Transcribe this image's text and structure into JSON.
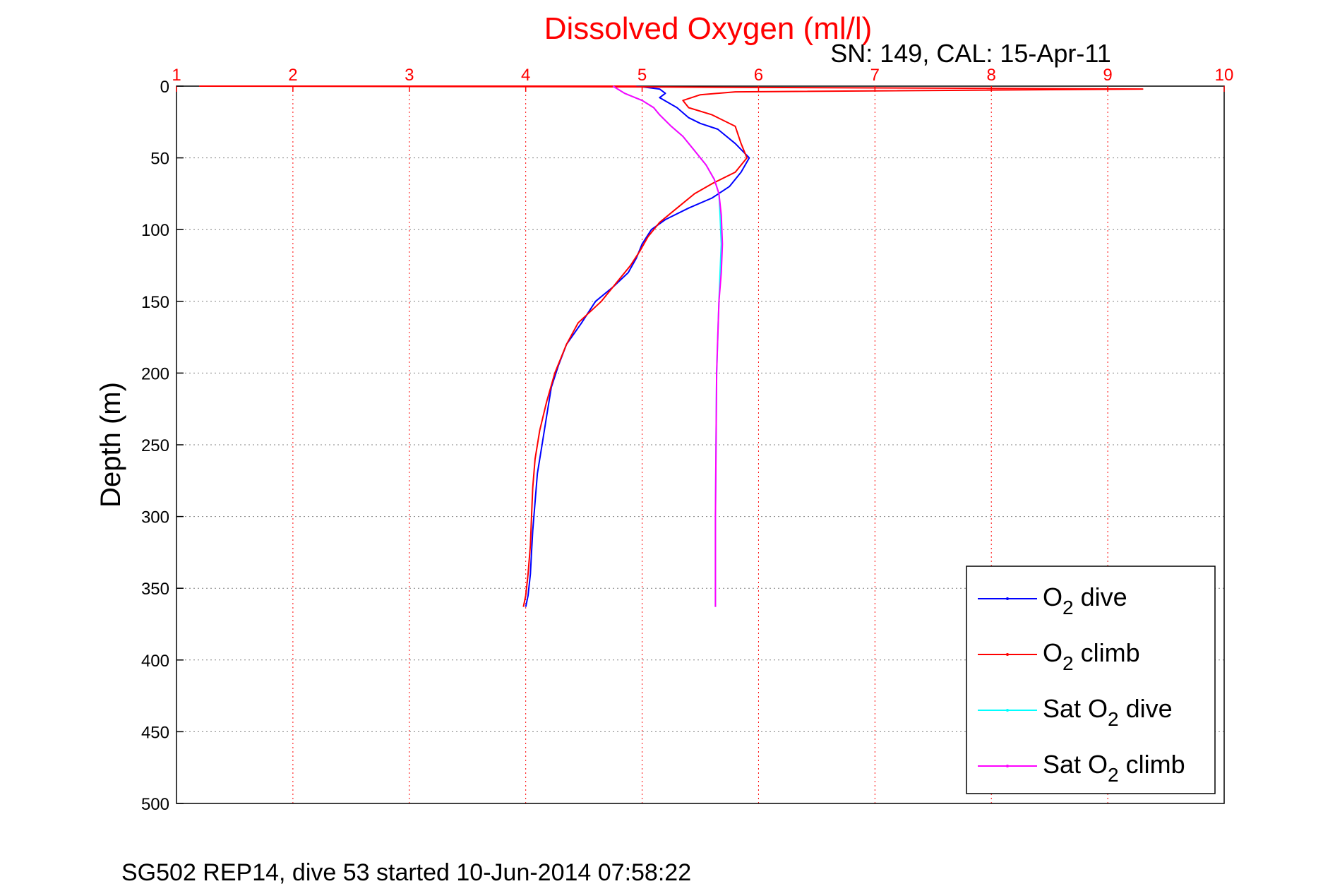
{
  "chart_data": {
    "type": "line",
    "title": "Dissolved Oxygen (ml/l)",
    "subtitle": "SN: 149, CAL: 15-Apr-11",
    "ylabel": "Depth (m)",
    "caption": "SG502 REP14, dive 53 started 10-Jun-2014 07:58:22",
    "xlim": [
      1,
      10
    ],
    "ylim": [
      0,
      500
    ],
    "y_reversed": true,
    "x_axis_position": "top",
    "x_ticks": [
      "1",
      "2",
      "3",
      "4",
      "5",
      "6",
      "7",
      "8",
      "9",
      "10"
    ],
    "y_ticks": [
      "0",
      "50",
      "100",
      "150",
      "200",
      "250",
      "300",
      "350",
      "400",
      "450",
      "500"
    ],
    "grid": true,
    "legend_position": "bottom-right",
    "colors": {
      "axis_x": "#ff0000",
      "title": "#ff0000",
      "grid": "#808080",
      "grid_x": "#ff0000"
    },
    "series": [
      {
        "name": "O₂ dive",
        "legend_main": "O",
        "legend_sub": "2",
        "legend_tail": " dive",
        "color": "#0000ff",
        "x": [
          4.8,
          5.0,
          5.15,
          5.2,
          5.15,
          5.3,
          5.4,
          5.5,
          5.65,
          5.8,
          5.92,
          5.85,
          5.75,
          5.6,
          5.4,
          5.2,
          5.08,
          5.0,
          4.95,
          4.88,
          4.75,
          4.6,
          4.48,
          4.35,
          4.28,
          4.22,
          4.18,
          4.14,
          4.1,
          4.08,
          4.06,
          4.05,
          4.04,
          4.02,
          4.0
        ],
        "y": [
          0,
          0.5,
          2,
          5,
          8,
          15,
          22,
          26,
          30,
          40,
          50,
          60,
          70,
          78,
          85,
          93,
          100,
          110,
          120,
          130,
          140,
          150,
          165,
          180,
          195,
          210,
          230,
          250,
          270,
          290,
          310,
          325,
          340,
          355,
          363
        ]
      },
      {
        "name": "O₂ climb",
        "legend_main": "O",
        "legend_sub": "2",
        "legend_tail": " climb",
        "color": "#ff0000",
        "x": [
          4.95,
          1.2,
          4.8,
          9.3,
          5.8,
          5.5,
          5.35,
          5.4,
          5.6,
          5.8,
          5.85,
          5.9,
          5.8,
          5.6,
          5.45,
          5.3,
          5.15,
          5.05,
          4.98,
          4.9,
          4.8,
          4.65,
          4.45,
          4.35,
          4.25,
          4.18,
          4.12,
          4.08,
          4.06,
          4.05,
          4.04,
          4.02,
          4.0,
          3.98
        ],
        "y": [
          0,
          0,
          0.5,
          2,
          4,
          6,
          10,
          15,
          20,
          28,
          40,
          50,
          60,
          68,
          75,
          85,
          95,
          105,
          115,
          125,
          135,
          150,
          165,
          180,
          200,
          220,
          240,
          260,
          280,
          300,
          320,
          340,
          355,
          363
        ]
      },
      {
        "name": "Sat O₂ dive",
        "legend_main": "Sat O",
        "legend_sub": "2",
        "legend_tail": " dive",
        "color": "#00ffff",
        "x": [
          4.75,
          4.85,
          5.0,
          5.1,
          5.15,
          5.25,
          5.35,
          5.45,
          5.55,
          5.62,
          5.66,
          5.67,
          5.68,
          5.67,
          5.66,
          5.65,
          5.64,
          5.63,
          5.63
        ],
        "y": [
          0,
          5,
          10,
          15,
          20,
          28,
          35,
          45,
          55,
          65,
          75,
          90,
          110,
          130,
          150,
          175,
          200,
          300,
          363
        ]
      },
      {
        "name": "Sat O₂ climb",
        "legend_main": "Sat O",
        "legend_sub": "2",
        "legend_tail": " climb",
        "color": "#ff00ff",
        "x": [
          4.75,
          4.85,
          5.0,
          5.1,
          5.15,
          5.25,
          5.35,
          5.45,
          5.55,
          5.62,
          5.66,
          5.68,
          5.69,
          5.68,
          5.66,
          5.65,
          5.64,
          5.63,
          5.63
        ],
        "y": [
          0,
          5,
          10,
          15,
          20,
          28,
          35,
          45,
          55,
          65,
          75,
          90,
          110,
          130,
          150,
          175,
          200,
          300,
          363
        ]
      }
    ]
  }
}
